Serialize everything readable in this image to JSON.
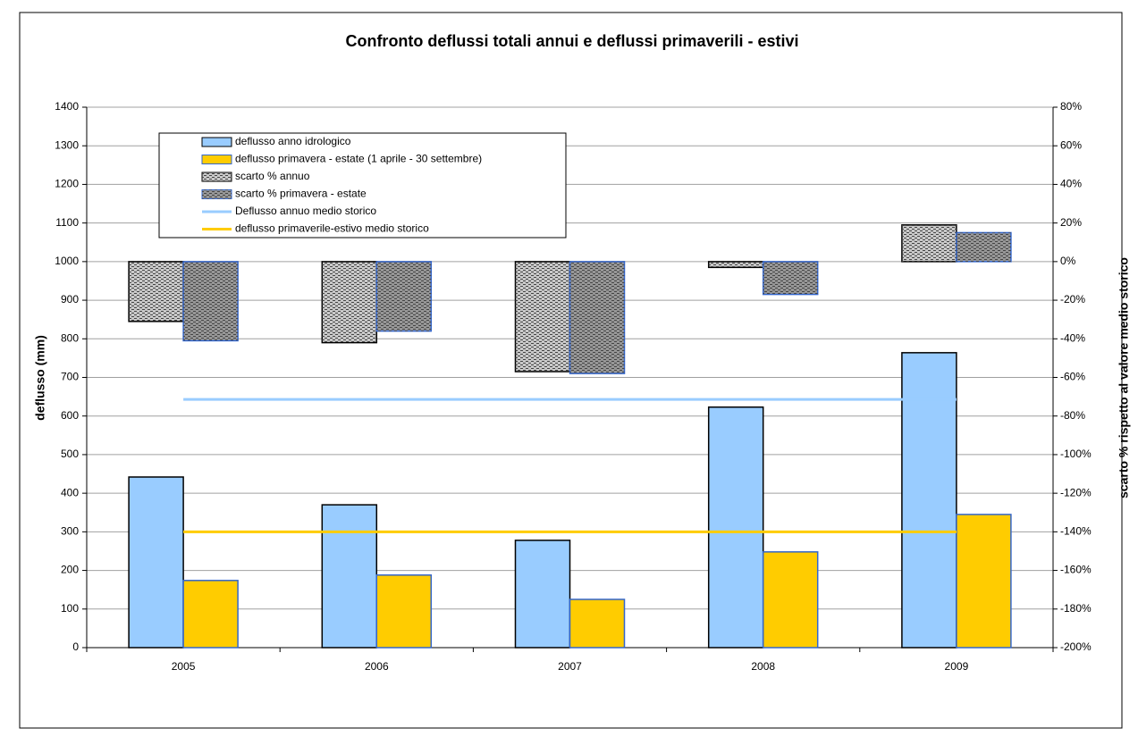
{
  "chart_data": {
    "type": "bar",
    "title": "Confronto deflussi totali annui e deflussi primaverili - estivi",
    "y_label": "deflusso (mm)",
    "y2_label": "scarto % rispetto al valore medio storico",
    "categories": [
      "2005",
      "2006",
      "2007",
      "2008",
      "2009"
    ],
    "series": [
      {
        "name": "deflusso anno idrologico",
        "type": "bar",
        "color": "#99ccff",
        "border": "#000000",
        "values": [
          442,
          370,
          278,
          623,
          764
        ]
      },
      {
        "name": "deflusso primavera - estate (1 aprile - 30 settembre)",
        "type": "bar",
        "color": "#ffcc00",
        "border": "#3366cc",
        "values": [
          174,
          188,
          125,
          248,
          345
        ]
      },
      {
        "name": "scarto % annuo",
        "type": "bar",
        "axis": "y2",
        "color": "#c8c8c8",
        "border": "#000000",
        "pattern": true,
        "values": [
          -31,
          -42,
          -57,
          -3,
          19
        ]
      },
      {
        "name": "scarto % primavera - estate",
        "type": "bar",
        "axis": "y2",
        "color": "#969696",
        "border": "#3366cc",
        "pattern": true,
        "values": [
          -41,
          -36,
          -58,
          -17,
          15
        ]
      },
      {
        "name": "Deflusso annuo medio storico",
        "type": "line",
        "color": "#99ccff",
        "values": [
          643,
          643,
          643,
          643,
          643
        ]
      },
      {
        "name": "deflusso primaverile-estivo medio storico",
        "type": "line",
        "color": "#ffcc00",
        "values": [
          300,
          300,
          300,
          300,
          300
        ]
      }
    ],
    "ylim": [
      0,
      1400
    ],
    "yticks": [
      0,
      100,
      200,
      300,
      400,
      500,
      600,
      700,
      800,
      900,
      1000,
      1100,
      1200,
      1300,
      1400
    ],
    "y2lim": [
      -200,
      80
    ],
    "y2ticks": [
      {
        "value": -200,
        "label": "-200%"
      },
      {
        "value": -180,
        "label": "-180%"
      },
      {
        "value": -160,
        "label": "-160%"
      },
      {
        "value": -140,
        "label": "-140%"
      },
      {
        "value": -120,
        "label": "-120%"
      },
      {
        "value": -100,
        "label": "-100%"
      },
      {
        "value": -80,
        "label": "-80%"
      },
      {
        "value": -60,
        "label": "-60%"
      },
      {
        "value": -40,
        "label": "-40%"
      },
      {
        "value": -20,
        "label": "-20%"
      },
      {
        "value": 0,
        "label": "0%"
      },
      {
        "value": 20,
        "label": "20%"
      },
      {
        "value": 40,
        "label": "40%"
      },
      {
        "value": 60,
        "label": "60%"
      },
      {
        "value": 80,
        "label": "80%"
      }
    ],
    "grid": true
  }
}
